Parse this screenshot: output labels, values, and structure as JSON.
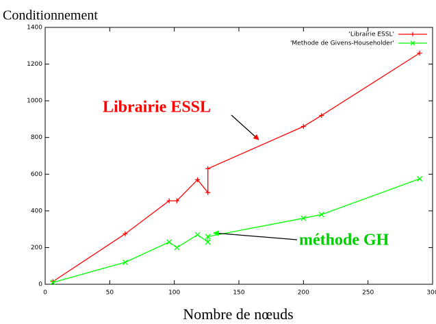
{
  "chart_data": {
    "type": "line",
    "title": "Conditionnement",
    "x_label": "Nombre de nœuds",
    "x": [
      6,
      62,
      96,
      102,
      118,
      126,
      126,
      200,
      214,
      290
    ],
    "series": [
      {
        "name": "'Librairie ESSL'",
        "color": "#ff0000",
        "marker": "+",
        "values": [
          15,
          275,
          455,
          455,
          570,
          500,
          630,
          860,
          920,
          1260
        ]
      },
      {
        "name": "'Methode de Givens-Householder'",
        "color": "#00ff00",
        "marker": "x",
        "values": [
          10,
          120,
          230,
          200,
          270,
          230,
          260,
          360,
          380,
          575
        ]
      }
    ],
    "xlim": [
      0,
      300
    ],
    "xticks": [
      0,
      50,
      100,
      150,
      200,
      250,
      300
    ],
    "ylim": [
      0,
      1400
    ],
    "yticks": [
      0,
      200,
      400,
      600,
      800,
      1000,
      1200,
      1400
    ],
    "legend": "upper right",
    "annotations": [
      {
        "text": "Librairie ESSL",
        "color": "#ff0000"
      },
      {
        "text": "méthode GH",
        "color": "#00cc00"
      }
    ]
  }
}
